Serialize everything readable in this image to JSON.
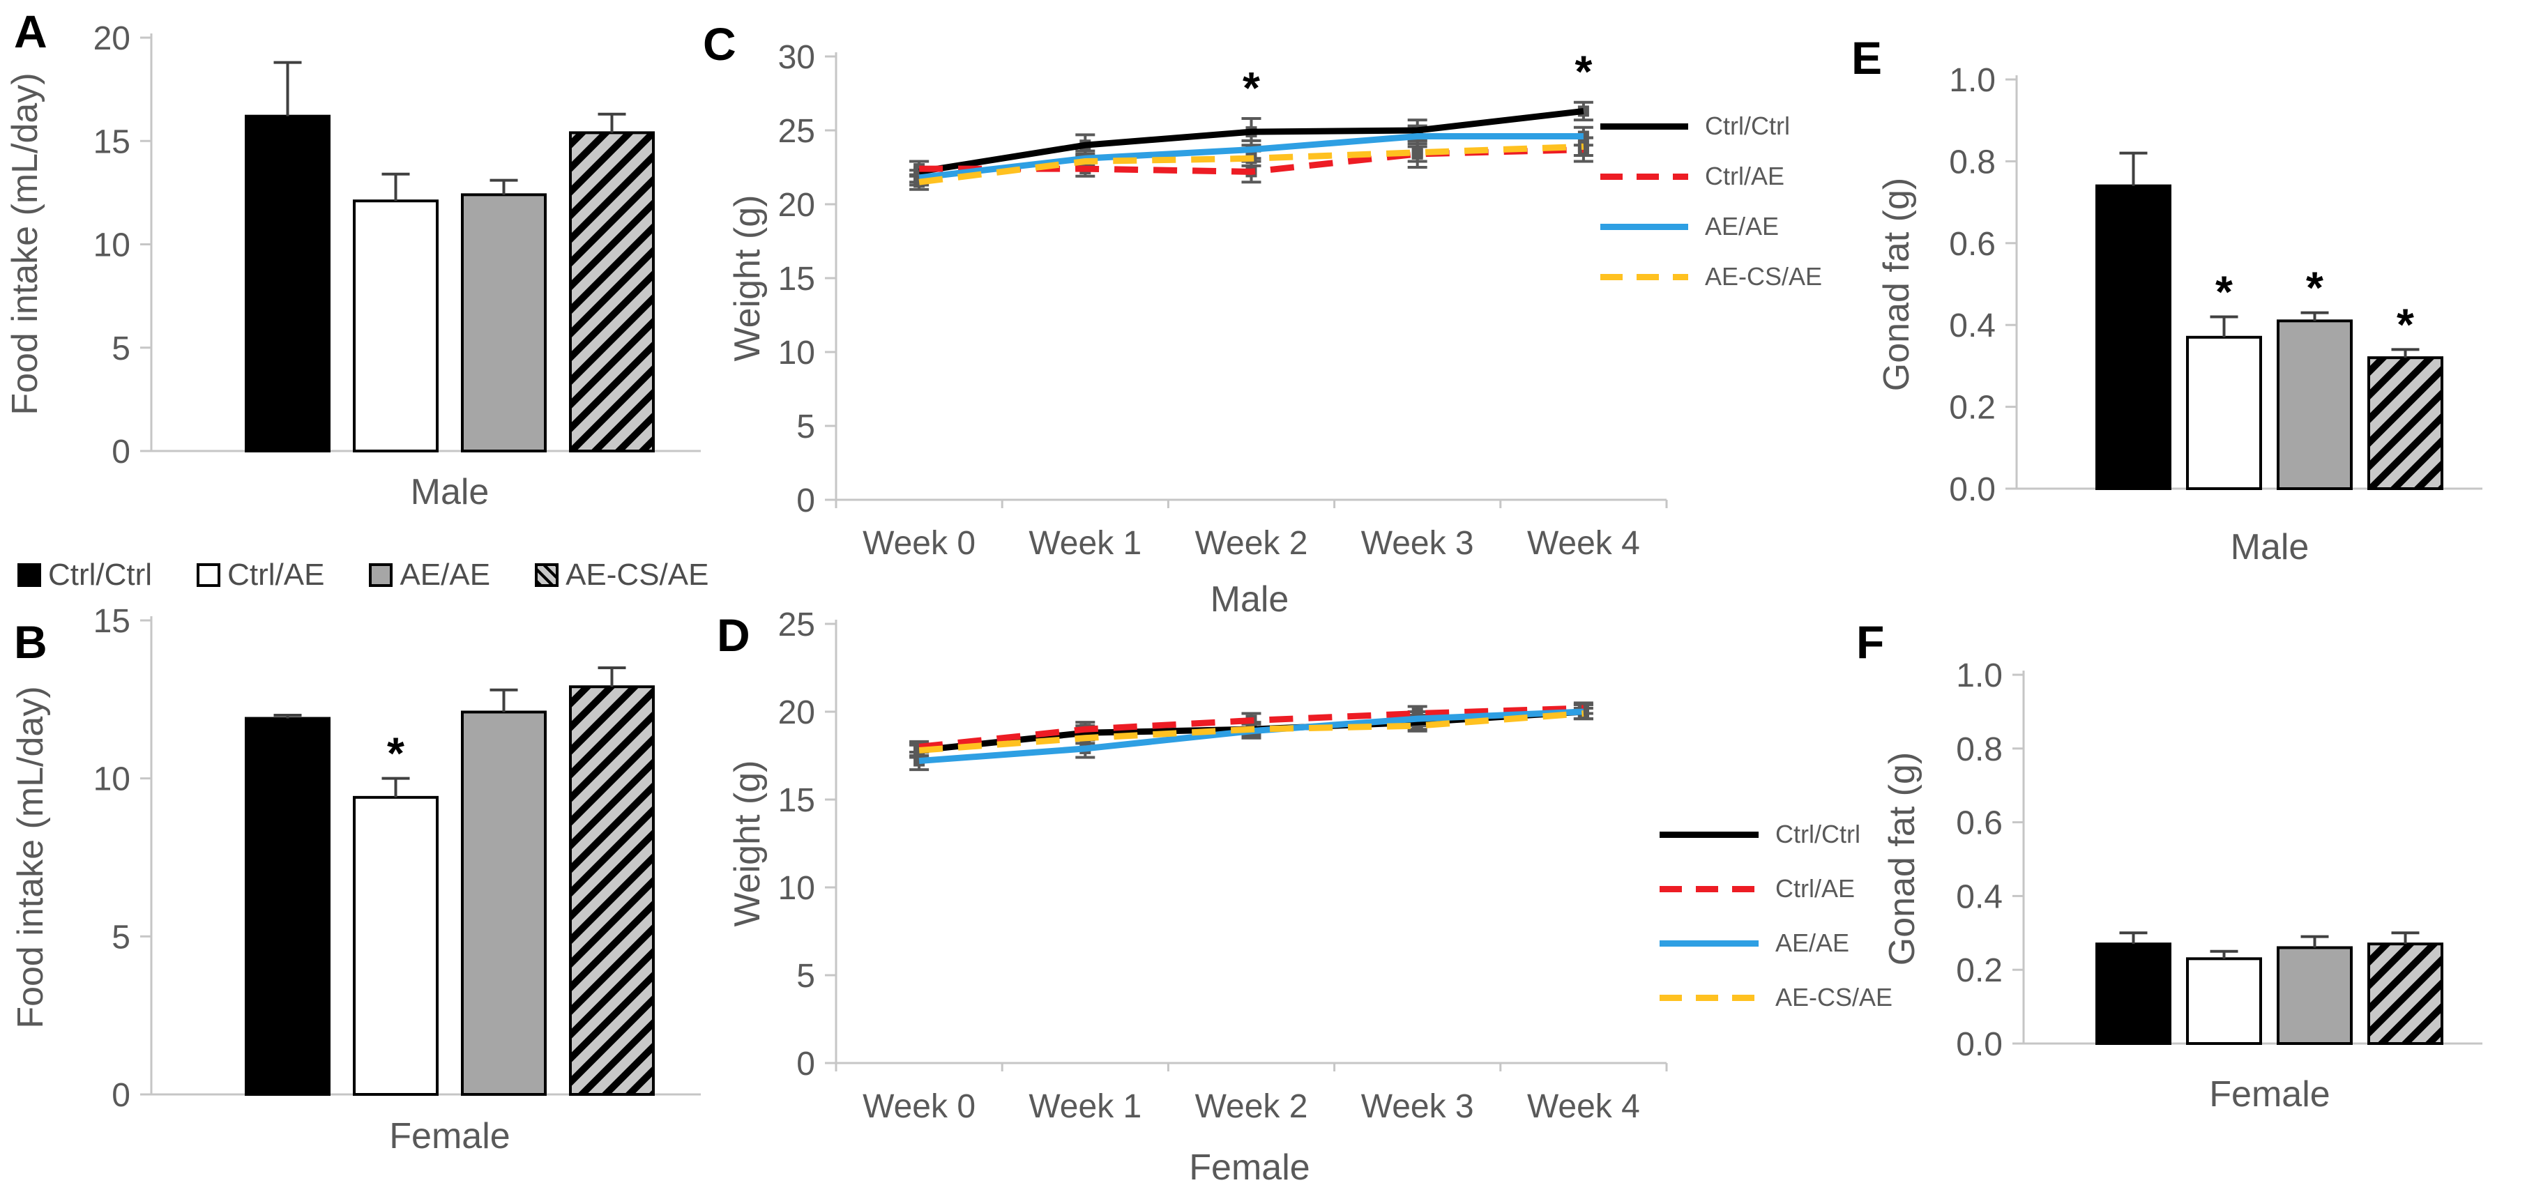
{
  "colors": {
    "axis": "#c6c6c6",
    "text": "#595959",
    "error_bar": "#404040",
    "marker": "#595959",
    "bar_black": "#000000",
    "bar_white": "#ffffff",
    "bar_gray": "#a6a6a6",
    "hatch_bg": "#c8c8c8",
    "line_black": "#000000",
    "line_red": "#ed1c24",
    "line_blue": "#2e9fe3",
    "line_yellow": "#ffc120"
  },
  "legends": {
    "bars": {
      "items": [
        {
          "label": "Ctrl/Ctrl",
          "style": "black"
        },
        {
          "label": "Ctrl/AE",
          "style": "white"
        },
        {
          "label": "AE/AE",
          "style": "gray"
        },
        {
          "label": "AE-CS/AE",
          "style": "hatch"
        }
      ]
    },
    "line_male": {
      "items": [
        {
          "label": "Ctrl/Ctrl",
          "color": "#000000",
          "dash": false
        },
        {
          "label": "Ctrl/AE",
          "color": "#ed1c24",
          "dash": true
        },
        {
          "label": "AE/AE",
          "color": "#2e9fe3",
          "dash": false
        },
        {
          "label": "AE-CS/AE",
          "color": "#ffc120",
          "dash": true
        }
      ]
    },
    "line_female": {
      "items": [
        {
          "label": "Ctrl/Ctrl",
          "color": "#000000",
          "dash": false
        },
        {
          "label": "Ctrl/AE",
          "color": "#ed1c24",
          "dash": true
        },
        {
          "label": "AE/AE",
          "color": "#2e9fe3",
          "dash": false
        },
        {
          "label": "AE-CS/AE",
          "color": "#ffc120",
          "dash": true
        }
      ]
    }
  },
  "chart_data": [
    {
      "id": "A",
      "panel_letter": "A",
      "type": "bar",
      "categories": [
        "Ctrl/Ctrl",
        "Ctrl/AE",
        "AE/AE",
        "AE-CS/AE"
      ],
      "values": [
        16.2,
        12.1,
        12.4,
        15.4
      ],
      "errors": [
        2.6,
        1.3,
        0.7,
        0.9
      ],
      "sig": [
        "",
        "",
        "",
        ""
      ],
      "styles": [
        "black",
        "white",
        "gray",
        "hatch"
      ],
      "title": "",
      "xlabel": "Male",
      "ylabel": "Food intake (mL/day)",
      "ylim": [
        0,
        20
      ],
      "yticks": [
        "0",
        "5",
        "10",
        "15",
        "20"
      ],
      "grid": false,
      "legend_position": "below-panel shared group legend"
    },
    {
      "id": "B",
      "panel_letter": "B",
      "type": "bar",
      "categories": [
        "Ctrl/Ctrl",
        "Ctrl/AE",
        "AE/AE",
        "AE-CS/AE"
      ],
      "values": [
        11.9,
        9.4,
        12.1,
        12.9
      ],
      "errors": [
        0.1,
        0.6,
        0.7,
        0.6
      ],
      "sig": [
        "",
        "*",
        "",
        ""
      ],
      "styles": [
        "black",
        "white",
        "gray",
        "hatch"
      ],
      "title": "",
      "xlabel": "Female",
      "ylabel": "Food intake (mL/day)",
      "ylim": [
        0,
        15
      ],
      "yticks": [
        "0",
        "5",
        "10",
        "15"
      ],
      "grid": false
    },
    {
      "id": "C",
      "panel_letter": "C",
      "type": "line",
      "x": [
        "Week 0",
        "Week 1",
        "Week 2",
        "Week 3",
        "Week 4"
      ],
      "series": [
        {
          "name": "Ctrl/Ctrl",
          "color": "#000000",
          "dash": false,
          "values": [
            22.2,
            24.0,
            24.9,
            25.0,
            26.3
          ],
          "errors": [
            0.7,
            0.7,
            0.9,
            0.7,
            0.6
          ]
        },
        {
          "name": "Ctrl/AE",
          "color": "#ed1c24",
          "dash": true,
          "values": [
            22.4,
            22.4,
            22.2,
            23.4,
            23.7
          ],
          "errors": [
            0.5,
            0.5,
            0.7,
            0.9,
            0.8
          ]
        },
        {
          "name": "AE/AE",
          "color": "#2e9fe3",
          "dash": false,
          "values": [
            21.8,
            23.1,
            23.7,
            24.6,
            24.6
          ],
          "errors": [
            0.5,
            0.5,
            0.6,
            0.7,
            0.6
          ]
        },
        {
          "name": "AE-CS/AE",
          "color": "#ffc120",
          "dash": true,
          "values": [
            21.5,
            22.9,
            23.1,
            23.5,
            23.9
          ],
          "errors": [
            0.5,
            0.5,
            0.5,
            0.6,
            0.6
          ]
        }
      ],
      "sig_points": [
        {
          "x_index": 2,
          "label": "*"
        },
        {
          "x_index": 4,
          "label": "*"
        }
      ],
      "title": "",
      "xlabel": "Male",
      "ylabel": "Weight (g)",
      "ylim": [
        0,
        30
      ],
      "yticks": [
        "0",
        "5",
        "10",
        "15",
        "20",
        "25",
        "30"
      ],
      "grid": false,
      "legend_position": "right"
    },
    {
      "id": "D",
      "panel_letter": "D",
      "type": "line",
      "x": [
        "Week 0",
        "Week 1",
        "Week 2",
        "Week 3",
        "Week 4"
      ],
      "series": [
        {
          "name": "Ctrl/Ctrl",
          "color": "#000000",
          "dash": false,
          "values": [
            17.8,
            18.8,
            19.0,
            19.4,
            20.0
          ],
          "errors": [
            0.4,
            0.4,
            0.4,
            0.4,
            0.4
          ]
        },
        {
          "name": "Ctrl/AE",
          "color": "#ed1c24",
          "dash": true,
          "values": [
            18.0,
            19.0,
            19.5,
            19.9,
            20.2
          ],
          "errors": [
            0.3,
            0.4,
            0.4,
            0.4,
            0.3
          ]
        },
        {
          "name": "AE/AE",
          "color": "#2e9fe3",
          "dash": false,
          "values": [
            17.2,
            17.9,
            18.9,
            19.6,
            20.0
          ],
          "errors": [
            0.5,
            0.5,
            0.4,
            0.4,
            0.4
          ]
        },
        {
          "name": "AE-CS/AE",
          "color": "#ffc120",
          "dash": true,
          "values": [
            17.8,
            18.5,
            19.0,
            19.2,
            19.9
          ],
          "errors": [
            0.3,
            0.3,
            0.3,
            0.3,
            0.3
          ]
        }
      ],
      "sig_points": [],
      "title": "",
      "xlabel": "Female",
      "ylabel": "Weight (g)",
      "ylim": [
        0,
        25
      ],
      "yticks": [
        "0",
        "5",
        "10",
        "15",
        "20",
        "25"
      ],
      "grid": false,
      "legend_position": "right"
    },
    {
      "id": "E",
      "panel_letter": "E",
      "type": "bar",
      "categories": [
        "Ctrl/Ctrl",
        "Ctrl/AE",
        "AE/AE",
        "AE-CS/AE"
      ],
      "values": [
        0.74,
        0.37,
        0.41,
        0.32
      ],
      "errors": [
        0.08,
        0.05,
        0.02,
        0.02
      ],
      "sig": [
        "",
        "*",
        "*",
        "*"
      ],
      "styles": [
        "black",
        "white",
        "gray",
        "hatch"
      ],
      "title": "",
      "xlabel": "Male",
      "ylabel": "Gonad fat (g)",
      "ylim": [
        0,
        1.0
      ],
      "yticks": [
        "0.0",
        "0.2",
        "0.4",
        "0.6",
        "0.8",
        "1.0"
      ],
      "grid": false
    },
    {
      "id": "F",
      "panel_letter": "F",
      "type": "bar",
      "categories": [
        "Ctrl/Ctrl",
        "Ctrl/AE",
        "AE/AE",
        "AE-CS/AE"
      ],
      "values": [
        0.27,
        0.23,
        0.26,
        0.27
      ],
      "errors": [
        0.03,
        0.02,
        0.03,
        0.03
      ],
      "sig": [
        "",
        "",
        "",
        ""
      ],
      "styles": [
        "black",
        "white",
        "gray",
        "hatch"
      ],
      "title": "",
      "xlabel": "Female",
      "ylabel": "Gonad fat (g)",
      "ylim": [
        0,
        1.0
      ],
      "yticks": [
        "0.0",
        "0.2",
        "0.4",
        "0.6",
        "0.8",
        "1.0"
      ],
      "grid": false
    }
  ]
}
